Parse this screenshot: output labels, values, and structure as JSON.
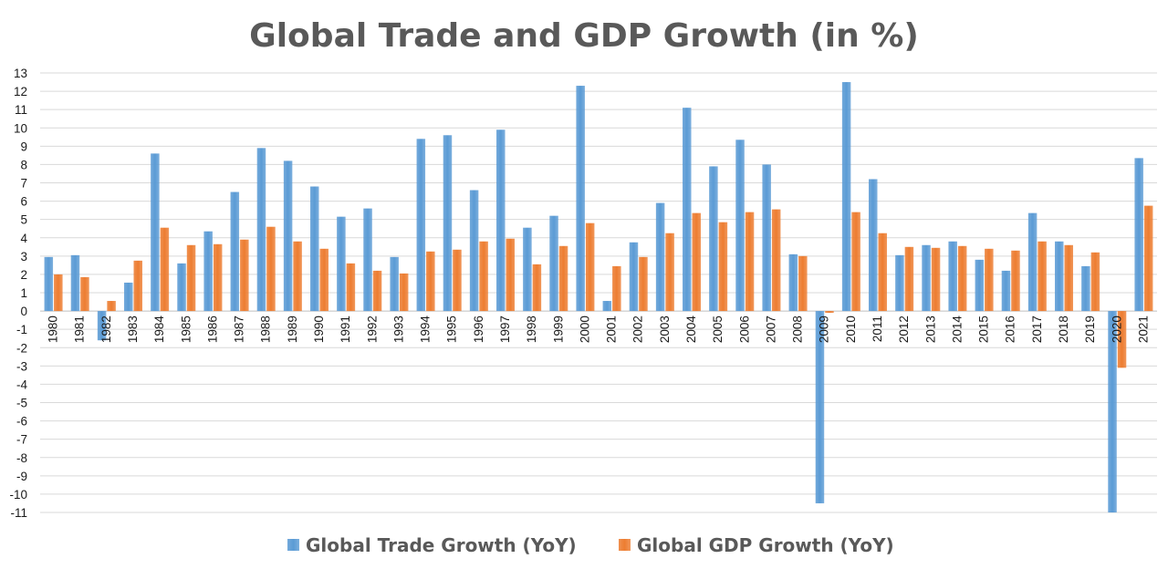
{
  "chart_data": {
    "type": "bar",
    "title": "Global Trade and GDP Growth (in %)",
    "xlabel": "",
    "ylabel": "",
    "ylim": [
      -11,
      13
    ],
    "yticks": [
      13,
      12,
      11,
      10,
      9,
      8,
      7,
      6,
      5,
      4,
      3,
      2,
      1,
      0,
      -1,
      -2,
      -3,
      -4,
      -5,
      -6,
      -7,
      -8,
      -9,
      -10,
      -11
    ],
    "grid": true,
    "legend_position": "bottom",
    "categories": [
      "1980",
      "1981",
      "1982",
      "1983",
      "1984",
      "1985",
      "1986",
      "1987",
      "1988",
      "1989",
      "1990",
      "1991",
      "1992",
      "1993",
      "1994",
      "1995",
      "1996",
      "1997",
      "1998",
      "1999",
      "2000",
      "2001",
      "2002",
      "2003",
      "2004",
      "2005",
      "2006",
      "2007",
      "2008",
      "2009",
      "2010",
      "2011",
      "2012",
      "2013",
      "2014",
      "2015",
      "2016",
      "2017",
      "2018",
      "2019",
      "2020",
      "2021"
    ],
    "series": [
      {
        "name": "Global Trade Growth (YoY)",
        "color": "#5b9bd5",
        "values": [
          2.95,
          3.05,
          -1.6,
          1.55,
          8.6,
          2.6,
          4.35,
          6.5,
          8.9,
          8.2,
          6.8,
          5.15,
          5.6,
          2.95,
          9.4,
          9.6,
          6.6,
          9.9,
          4.55,
          5.2,
          12.3,
          0.55,
          3.75,
          5.9,
          11.1,
          7.9,
          9.35,
          8.0,
          3.1,
          -10.5,
          12.5,
          7.2,
          3.05,
          3.6,
          3.8,
          2.8,
          2.2,
          5.35,
          3.8,
          2.45,
          -11.0,
          8.35
        ]
      },
      {
        "name": "Global GDP Growth (YoY)",
        "color": "#ed7d31",
        "values": [
          2.0,
          1.85,
          0.55,
          2.75,
          4.55,
          3.6,
          3.65,
          3.9,
          4.6,
          3.8,
          3.4,
          2.6,
          2.2,
          2.05,
          3.25,
          3.35,
          3.8,
          3.95,
          2.55,
          3.55,
          4.8,
          2.45,
          2.95,
          4.25,
          5.35,
          4.85,
          5.4,
          5.55,
          3.0,
          -0.1,
          5.4,
          4.25,
          3.5,
          3.45,
          3.55,
          3.4,
          3.3,
          3.8,
          3.6,
          3.2,
          -3.1,
          5.75
        ]
      }
    ]
  }
}
